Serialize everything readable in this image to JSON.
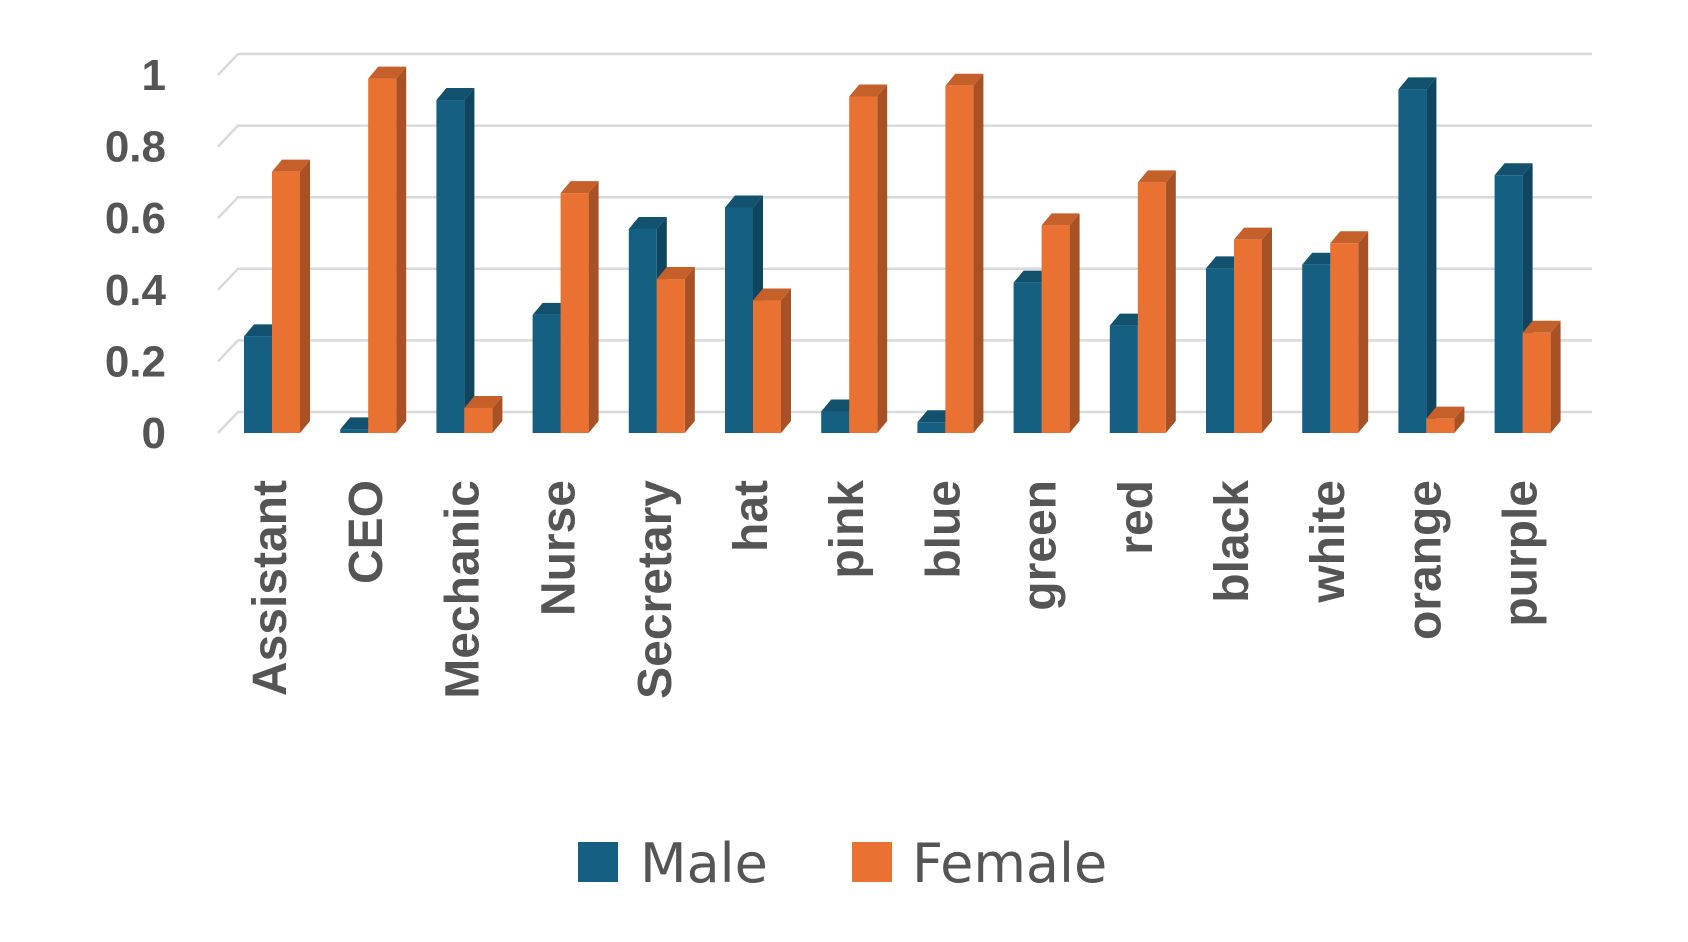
{
  "chart_data": {
    "type": "bar",
    "categories": [
      "Assistant",
      "CEO",
      "Mechanic",
      "Nurse",
      "Secretary",
      "hat",
      "pink",
      "blue",
      "green",
      "red",
      "black",
      "white",
      "orange",
      "purple"
    ],
    "series": [
      {
        "name": "Male",
        "color": "#156082",
        "values": [
          0.27,
          0.01,
          0.93,
          0.33,
          0.57,
          0.63,
          0.06,
          0.03,
          0.42,
          0.3,
          0.46,
          0.47,
          0.96,
          0.72
        ]
      },
      {
        "name": "Female",
        "color": "#E97132",
        "values": [
          0.73,
          0.99,
          0.07,
          0.67,
          0.43,
          0.37,
          0.94,
          0.97,
          0.58,
          0.7,
          0.54,
          0.53,
          0.04,
          0.28
        ]
      }
    ],
    "yticks": [
      "0",
      "0.2",
      "0.4",
      "0.6",
      "0.8",
      "1"
    ],
    "ylim": [
      0,
      1
    ],
    "title": "",
    "xlabel": "",
    "ylabel": "",
    "legend_position": "bottom"
  }
}
